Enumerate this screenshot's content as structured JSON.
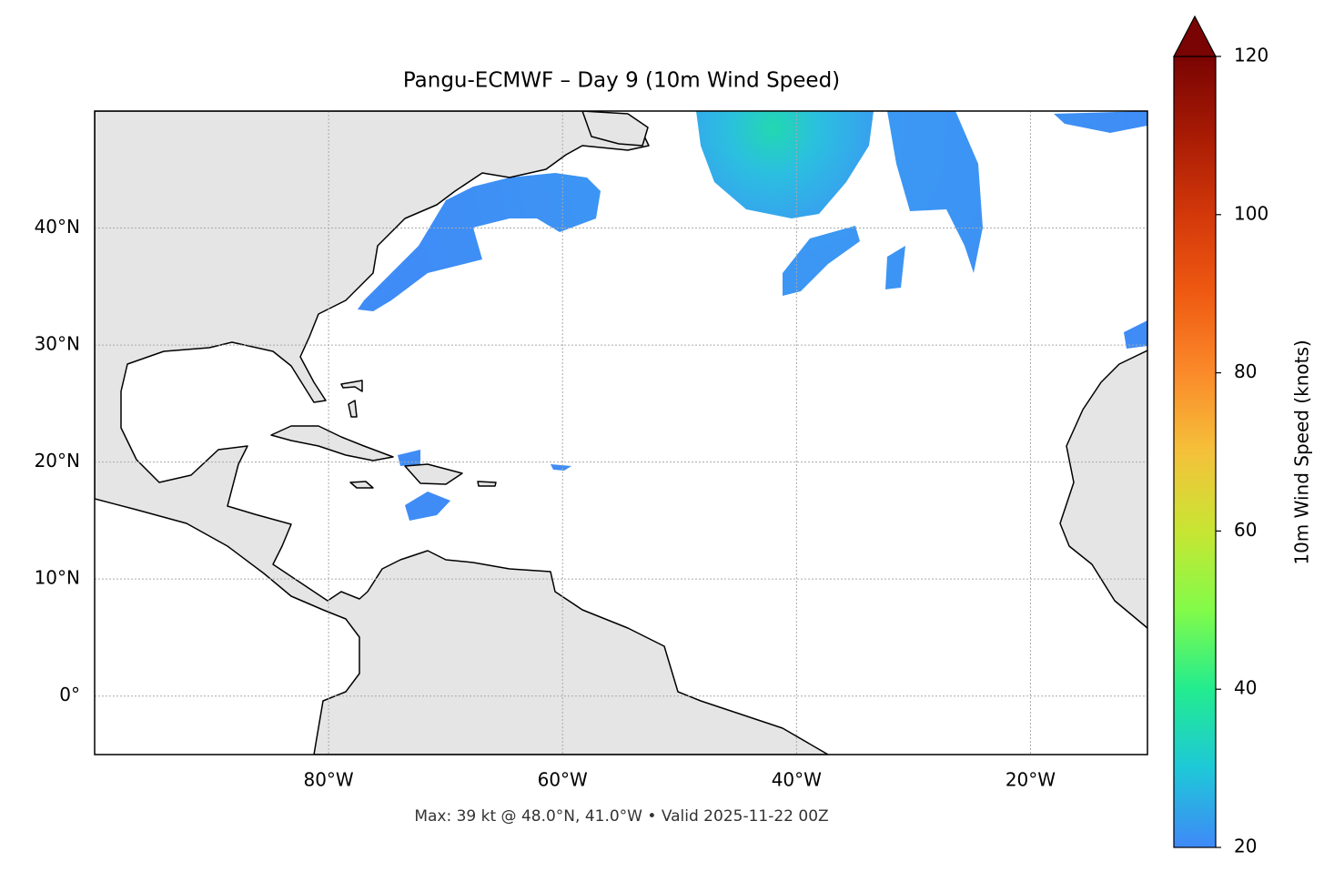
{
  "chart_data": {
    "type": "map",
    "title": "Pangu-ECMWF – Day 9 (10m Wind Speed)",
    "annotation": "Max: 39 kt @ 48.0°N, 41.0°W • Valid 2025-11-22 00Z",
    "xlim": [
      -100,
      -10
    ],
    "ylim": [
      -5,
      50
    ],
    "xticks": [
      {
        "value": -80,
        "label": "80°W"
      },
      {
        "value": -60,
        "label": "60°W"
      },
      {
        "value": -40,
        "label": "40°W"
      },
      {
        "value": -20,
        "label": "20°W"
      }
    ],
    "yticks": [
      {
        "value": 0,
        "label": "0°"
      },
      {
        "value": 10,
        "label": "10°N"
      },
      {
        "value": 20,
        "label": "20°N"
      },
      {
        "value": 30,
        "label": "30°N"
      },
      {
        "value": 40,
        "label": "40°N"
      }
    ],
    "grid": true,
    "colorbar": {
      "label": "10m Wind Speed (knots)",
      "lim": [
        20,
        120
      ],
      "ticks": [
        20,
        40,
        60,
        80,
        100,
        120
      ],
      "colors": [
        "#3f89f8",
        "#1ec8d8",
        "#22ec8f",
        "#82fb49",
        "#c8e533",
        "#f5c13a",
        "#fb8a2a",
        "#ef5a12",
        "#d3380a",
        "#a81b04",
        "#7a0403"
      ],
      "extend": "max"
    }
  }
}
